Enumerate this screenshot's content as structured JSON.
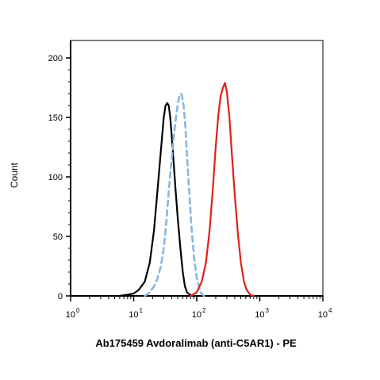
{
  "chart_data": {
    "type": "line",
    "title": "",
    "xlabel": "Ab175459 Avdoralimab (anti-C5AR1) - PE",
    "ylabel": "Count",
    "x_scale": "log",
    "xlim": [
      1,
      10000
    ],
    "ylim": [
      0,
      210
    ],
    "x_ticks": [
      {
        "value": 1,
        "base": "10",
        "exp": "0"
      },
      {
        "value": 10,
        "base": "10",
        "exp": "1"
      },
      {
        "value": 100,
        "base": "10",
        "exp": "2"
      },
      {
        "value": 1000,
        "base": "10",
        "exp": "3"
      },
      {
        "value": 10000,
        "base": "10",
        "exp": "4"
      }
    ],
    "y_ticks": [
      0,
      50,
      100,
      150,
      200
    ],
    "grid": false,
    "legend": "none",
    "series": [
      {
        "color": "#000000",
        "style": "solid",
        "x": [
          6,
          8,
          10,
          12,
          15,
          18,
          21,
          24,
          27,
          30,
          32,
          34,
          36,
          38,
          40,
          43,
          46,
          50,
          55,
          60,
          65,
          70,
          78,
          88
        ],
        "y": [
          0,
          1,
          2,
          5,
          12,
          28,
          55,
          90,
          122,
          150,
          160,
          162,
          160,
          150,
          135,
          112,
          90,
          65,
          40,
          20,
          8,
          3,
          1,
          0
        ]
      },
      {
        "color": "#87B7E2",
        "style": "dashed",
        "x": [
          15,
          18,
          21,
          24,
          27,
          30,
          33,
          36,
          40,
          44,
          48,
          52,
          55,
          58,
          62,
          66,
          70,
          76,
          82,
          90,
          100,
          115,
          130
        ],
        "y": [
          0,
          3,
          8,
          15,
          25,
          40,
          62,
          88,
          115,
          138,
          155,
          166,
          170,
          169,
          160,
          142,
          118,
          88,
          60,
          34,
          15,
          3,
          0
        ]
      },
      {
        "color": "#E1201A",
        "style": "solid",
        "x": [
          80,
          100,
          120,
          140,
          160,
          180,
          200,
          220,
          240,
          260,
          280,
          300,
          330,
          360,
          400,
          450,
          500,
          560,
          620,
          700,
          800
        ],
        "y": [
          0,
          3,
          12,
          28,
          55,
          90,
          125,
          152,
          168,
          175,
          179,
          172,
          150,
          120,
          85,
          52,
          28,
          12,
          5,
          1,
          0
        ]
      }
    ]
  }
}
